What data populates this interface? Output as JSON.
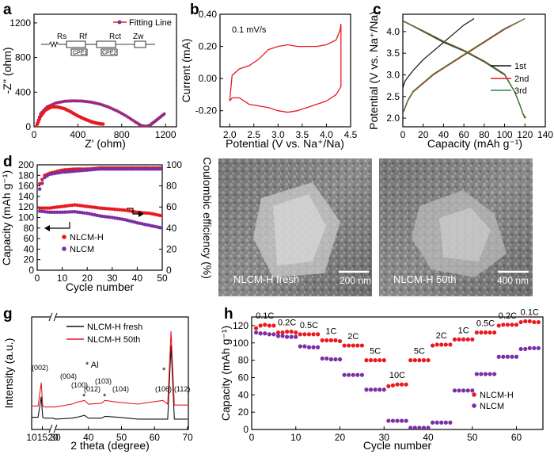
{
  "panel_labels": [
    "a",
    "b",
    "c",
    "d",
    "e",
    "f",
    "g",
    "h"
  ],
  "chart_data": [
    {
      "panel": "a",
      "type": "scatter",
      "xlabel": "Z' (ohm)",
      "ylabel": "-Z'' (ohm)",
      "xlim": [
        0,
        1300
      ],
      "ylim": [
        0,
        1300
      ],
      "xticks": [
        0,
        400,
        800,
        1200
      ],
      "yticks": [
        0,
        400,
        800,
        1200
      ],
      "legend": [
        "Fitting Line"
      ],
      "circuit_labels": [
        "Rs",
        "Rf",
        "Rct",
        "Zw",
        "CPE1",
        "CPE2"
      ],
      "series": [
        {
          "name": "NLCM",
          "color": "#7b2fa3",
          "x": [
            20,
            60,
            120,
            200,
            280,
            360,
            440,
            520,
            600,
            680,
            760,
            840,
            920,
            980,
            1030,
            1060,
            1100,
            1150,
            1200
          ],
          "y": [
            0,
            150,
            230,
            275,
            295,
            300,
            297,
            285,
            262,
            228,
            182,
            126,
            60,
            12,
            4,
            20,
            60,
            110,
            160
          ]
        },
        {
          "name": "NLCM-H",
          "color": "#e8191f",
          "x": [
            20,
            60,
            100,
            160,
            220,
            280,
            340,
            400,
            460,
            520,
            560,
            600,
            640
          ],
          "y": [
            0,
            120,
            190,
            230,
            228,
            208,
            170,
            125,
            90,
            60,
            45,
            35,
            30
          ]
        }
      ]
    },
    {
      "panel": "b",
      "type": "line",
      "annotation": "0.1 mV/s",
      "xlabel": "Potential (V vs. Na⁺/Na)",
      "ylabel": "Current (mA)",
      "xlim": [
        1.8,
        4.5
      ],
      "ylim": [
        -0.3,
        0.4
      ],
      "xticks": [
        2.0,
        2.5,
        3.0,
        3.5,
        4.0,
        4.5
      ],
      "yticks": [
        "-0.20",
        "0.00",
        "0.20",
        "0.40"
      ],
      "series": [
        {
          "name": "CV",
          "color": "#e8191f",
          "x": [
            2.0,
            2.05,
            2.2,
            2.4,
            2.6,
            2.8,
            3.0,
            3.2,
            3.4,
            3.6,
            3.8,
            4.0,
            4.2,
            4.28,
            4.3,
            4.3,
            4.2,
            4.0,
            3.8,
            3.6,
            3.4,
            3.2,
            3.0,
            2.8,
            2.6,
            2.4,
            2.2,
            2.05,
            2.0
          ],
          "y": [
            -0.14,
            0.02,
            0.06,
            0.08,
            0.12,
            0.18,
            0.2,
            0.21,
            0.2,
            0.2,
            0.2,
            0.21,
            0.24,
            0.3,
            0.34,
            -0.05,
            -0.1,
            -0.14,
            -0.16,
            -0.18,
            -0.2,
            -0.21,
            -0.2,
            -0.18,
            -0.17,
            -0.16,
            -0.12,
            -0.12,
            -0.14
          ]
        }
      ]
    },
    {
      "panel": "c",
      "type": "line",
      "xlabel": "Capacity (mAh g⁻¹)",
      "ylabel": "Potential (V vs. Na⁺/Na)",
      "xlim": [
        0,
        140
      ],
      "ylim": [
        1.8,
        4.4
      ],
      "xticks": [
        0,
        20,
        40,
        60,
        80,
        100,
        120,
        140
      ],
      "yticks": [
        "2.0",
        "2.5",
        "3.0",
        "3.5",
        "4.0"
      ],
      "legend": [
        "1st",
        "2nd",
        "3rd"
      ],
      "series": [
        {
          "name": "1st charge",
          "color": "#111111",
          "x": [
            0,
            2,
            5,
            10,
            20,
            30,
            40,
            50,
            60,
            70
          ],
          "y": [
            2.7,
            2.85,
            2.95,
            3.1,
            3.35,
            3.55,
            3.75,
            3.95,
            4.15,
            4.3
          ]
        },
        {
          "name": "1st discharge",
          "color": "#111111",
          "x": [
            0,
            20,
            40,
            60,
            80,
            100,
            110,
            115,
            118,
            120
          ],
          "y": [
            4.25,
            4.0,
            3.75,
            3.55,
            3.3,
            3.0,
            2.6,
            2.3,
            2.1,
            2.0
          ]
        },
        {
          "name": "2nd charge",
          "color": "#e8191f",
          "x": [
            0,
            5,
            10,
            20,
            30,
            40,
            60,
            80,
            100,
            120
          ],
          "y": [
            2.1,
            2.4,
            2.6,
            2.8,
            3.0,
            3.15,
            3.45,
            3.75,
            4.05,
            4.3
          ]
        },
        {
          "name": "2nd discharge",
          "color": "#e8191f",
          "x": [
            0,
            20,
            40,
            60,
            80,
            100,
            110,
            115,
            118,
            120
          ],
          "y": [
            4.25,
            4.02,
            3.78,
            3.57,
            3.32,
            3.02,
            2.6,
            2.3,
            2.1,
            2.0
          ]
        },
        {
          "name": "3rd charge",
          "color": "#2a8a3a",
          "x": [
            0,
            5,
            10,
            20,
            30,
            40,
            60,
            80,
            100,
            120
          ],
          "y": [
            2.12,
            2.42,
            2.62,
            2.82,
            3.02,
            3.17,
            3.47,
            3.77,
            4.07,
            4.3
          ]
        },
        {
          "name": "3rd discharge",
          "color": "#2a8a3a",
          "x": [
            0,
            20,
            40,
            60,
            80,
            100,
            110,
            115,
            118,
            121
          ],
          "y": [
            4.24,
            4.01,
            3.77,
            3.56,
            3.31,
            3.01,
            2.61,
            2.31,
            2.11,
            2.0
          ]
        }
      ]
    },
    {
      "panel": "d",
      "type": "scatter",
      "xlabel": "Cycle number",
      "ylabel": "Capacity (mAh g⁻¹)",
      "ylabel2": "Coulombic efficiency (%)",
      "xlim": [
        0,
        50
      ],
      "ylim": [
        0,
        200
      ],
      "ylim2": [
        0,
        100
      ],
      "xticks": [
        0,
        10,
        20,
        30,
        40,
        50
      ],
      "yticks": [
        0,
        20,
        40,
        60,
        80,
        100,
        120,
        140,
        160,
        180,
        200
      ],
      "yticks2": [
        0,
        20,
        40,
        60,
        80,
        100
      ],
      "legend": [
        "NLCM-H",
        "NLCM"
      ],
      "series": [
        {
          "name": "NLCM-H capacity",
          "color": "#e8191f",
          "axis": "left",
          "x": [
            1,
            5,
            10,
            15,
            20,
            25,
            30,
            35,
            40,
            45,
            50
          ],
          "y": [
            118,
            118,
            121,
            124,
            121,
            118,
            116,
            114,
            110,
            108,
            103
          ]
        },
        {
          "name": "NLCM capacity",
          "color": "#7b2fa3",
          "axis": "left",
          "x": [
            1,
            5,
            10,
            15,
            20,
            25,
            30,
            35,
            40,
            45,
            50
          ],
          "y": [
            112,
            110,
            110,
            111,
            108,
            103,
            100,
            96,
            90,
            85,
            80
          ]
        },
        {
          "name": "NLCM-H efficiency",
          "color": "#e8191f",
          "axis": "right",
          "x": [
            1,
            3,
            5,
            10,
            15,
            20,
            25,
            30,
            35,
            40,
            45,
            50
          ],
          "y": [
            82,
            90,
            92,
            95,
            96,
            96,
            97,
            97,
            97,
            97,
            97,
            97
          ]
        },
        {
          "name": "NLCM efficiency",
          "color": "#7b2fa3",
          "axis": "right",
          "x": [
            1,
            3,
            5,
            10,
            15,
            20,
            25,
            30,
            35,
            40,
            45,
            50
          ],
          "y": [
            77,
            88,
            91,
            93,
            94,
            95,
            96,
            96,
            96,
            96,
            96,
            96
          ]
        }
      ]
    },
    {
      "panel": "g",
      "type": "line",
      "xlabel": "2 theta (degree)",
      "ylabel": "Intensity (a.u.)",
      "xlim": [
        10,
        70
      ],
      "xticks": [
        10,
        15,
        20,
        30,
        40,
        50,
        60,
        70
      ],
      "legend": [
        "NLCM-H fresh",
        "NLCM-H 50th"
      ],
      "annotations": [
        "(002)",
        "(004)",
        "(100)",
        "(012)",
        "(103)",
        "(104)",
        "(106)",
        "(112)",
        "* Al",
        "*",
        "*",
        "*"
      ],
      "series": [
        {
          "name": "NLCM-H fresh",
          "color": "#111111",
          "x": [
            10,
            13,
            14.5,
            15.2,
            16,
            20,
            30,
            35,
            36.5,
            38.8,
            40,
            44,
            45,
            49,
            55,
            60,
            64,
            65,
            66,
            70
          ],
          "y": [
            0.08,
            0.08,
            0.3,
            0.08,
            0.07,
            0.07,
            0.06,
            0.07,
            0.08,
            0.1,
            0.07,
            0.07,
            0.09,
            0.08,
            0.06,
            0.06,
            0.06,
            0.85,
            0.06,
            0.06
          ]
        },
        {
          "name": "NLCM-H 50th",
          "color": "#e8191f",
          "x": [
            10,
            13,
            14.5,
            15.2,
            16,
            20,
            30,
            35,
            36.5,
            38.8,
            40,
            44,
            45,
            49,
            55,
            62.5,
            64,
            65,
            66,
            70
          ],
          "y": [
            0.2,
            0.2,
            0.45,
            0.2,
            0.19,
            0.19,
            0.19,
            0.22,
            0.24,
            0.26,
            0.22,
            0.23,
            0.26,
            0.24,
            0.22,
            0.26,
            0.22,
            1.0,
            0.21,
            0.21
          ]
        }
      ]
    },
    {
      "panel": "h",
      "type": "scatter",
      "xlabel": "Cycle number",
      "ylabel": "Capacity (mAh g⁻¹)",
      "xlim": [
        0,
        66
      ],
      "ylim": [
        0,
        130
      ],
      "xticks": [
        0,
        10,
        20,
        30,
        40,
        50,
        60
      ],
      "yticks": [
        0,
        20,
        40,
        60,
        80,
        100,
        120
      ],
      "legend": [
        "NLCM-H",
        "NLCM"
      ],
      "rate_labels": [
        "0.1C",
        "0.2C",
        "0.5C",
        "1C",
        "2C",
        "5C",
        "10C",
        "5C",
        "2C",
        "1C",
        "0.5C",
        "0.2C",
        "0.1C"
      ],
      "series": [
        {
          "name": "NLCM-H",
          "color": "#e8191f",
          "x": [
            1,
            2,
            3,
            4,
            5,
            6,
            7,
            8,
            9,
            10,
            11,
            12,
            13,
            14,
            15,
            16,
            17,
            18,
            19,
            20,
            21,
            22,
            23,
            24,
            25,
            26,
            27,
            28,
            29,
            30,
            31,
            32,
            33,
            34,
            35,
            36,
            37,
            38,
            39,
            40,
            41,
            42,
            43,
            44,
            45,
            46,
            47,
            48,
            49,
            50,
            51,
            52,
            53,
            54,
            55,
            56,
            57,
            58,
            59,
            60,
            61,
            62,
            63,
            64,
            65
          ],
          "y": [
            117,
            120,
            121,
            120,
            120,
            112,
            112,
            113,
            113,
            112,
            110,
            110,
            110,
            110,
            110,
            103,
            103,
            103,
            103,
            102,
            97,
            97,
            97,
            97,
            97,
            80,
            80,
            80,
            80,
            80,
            50,
            51,
            52,
            52,
            52,
            80,
            80,
            80,
            80,
            80,
            97,
            98,
            98,
            98,
            98,
            104,
            104,
            104,
            104,
            104,
            112,
            112,
            112,
            112,
            112,
            120,
            121,
            121,
            121,
            121,
            124,
            125,
            125,
            124,
            124
          ]
        },
        {
          "name": "NLCM",
          "color": "#7b2fa3",
          "x": [
            1,
            2,
            3,
            4,
            5,
            6,
            7,
            8,
            9,
            10,
            11,
            12,
            13,
            14,
            15,
            16,
            17,
            18,
            19,
            20,
            21,
            22,
            23,
            24,
            25,
            26,
            27,
            28,
            29,
            30,
            31,
            32,
            33,
            34,
            35,
            36,
            37,
            38,
            39,
            40,
            41,
            42,
            43,
            44,
            45,
            46,
            47,
            48,
            49,
            50,
            51,
            52,
            53,
            54,
            55,
            56,
            57,
            58,
            59,
            60,
            61,
            62,
            63,
            64,
            65
          ],
          "y": [
            112,
            111,
            111,
            110,
            110,
            108,
            108,
            107,
            107,
            107,
            96,
            96,
            95,
            95,
            95,
            82,
            82,
            81,
            81,
            81,
            63,
            63,
            63,
            63,
            63,
            46,
            46,
            46,
            46,
            46,
            10,
            10,
            10,
            10,
            10,
            2,
            2,
            2,
            2,
            2,
            8,
            8,
            8,
            8,
            8,
            45,
            45,
            45,
            45,
            45,
            64,
            64,
            64,
            64,
            64,
            84,
            84,
            84,
            84,
            84,
            93,
            93,
            94,
            94,
            94
          ]
        }
      ]
    }
  ],
  "sem_images": [
    {
      "panel": "e",
      "caption": "NLCM-H fresh",
      "scale_bar": "200 nm"
    },
    {
      "panel": "f",
      "caption": "NLCM-H 50th",
      "scale_bar": "400 nm"
    }
  ]
}
